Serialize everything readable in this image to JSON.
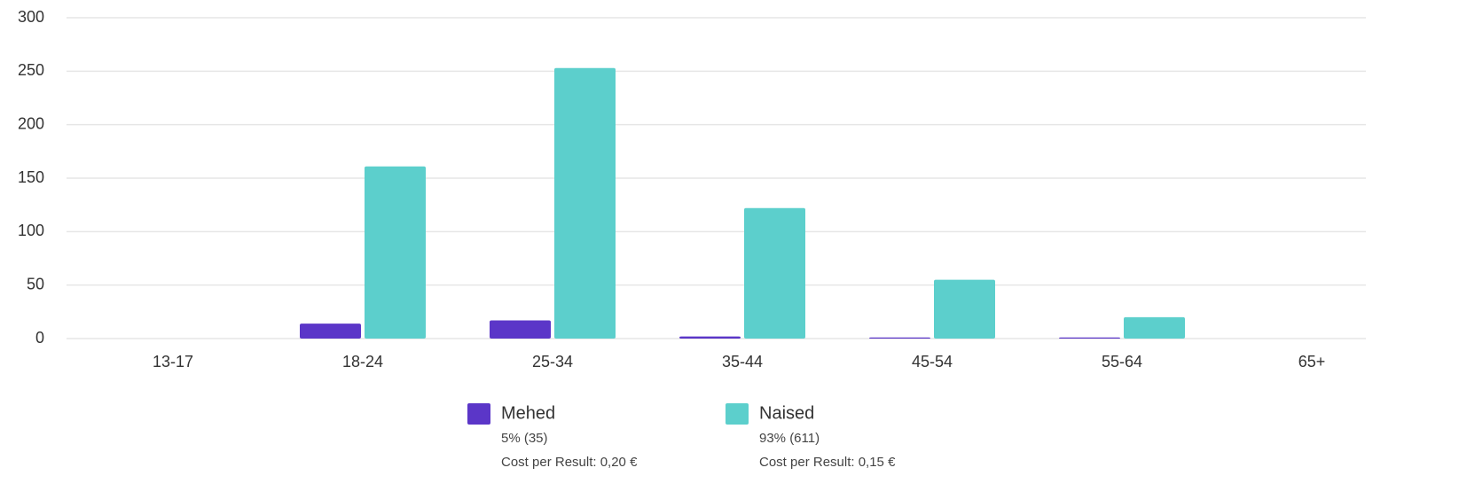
{
  "chart_data": {
    "type": "bar",
    "categories": [
      "13-17",
      "18-24",
      "25-34",
      "35-44",
      "45-54",
      "55-64",
      "65+"
    ],
    "series": [
      {
        "name": "Mehed",
        "color": "#5b36c8",
        "values": [
          0,
          14,
          17,
          2,
          1,
          1,
          0
        ],
        "legend_details": [
          "5% (35)",
          "Cost per Result: 0,20 €"
        ]
      },
      {
        "name": "Naised",
        "color": "#5ccfcc",
        "values": [
          0,
          161,
          253,
          122,
          55,
          20,
          0
        ],
        "legend_details": [
          "93% (611)",
          "Cost per Result: 0,15 €"
        ]
      }
    ],
    "ylim": [
      0,
      300
    ],
    "yticks": [
      0,
      50,
      100,
      150,
      200,
      250,
      300
    ],
    "grid": true
  }
}
